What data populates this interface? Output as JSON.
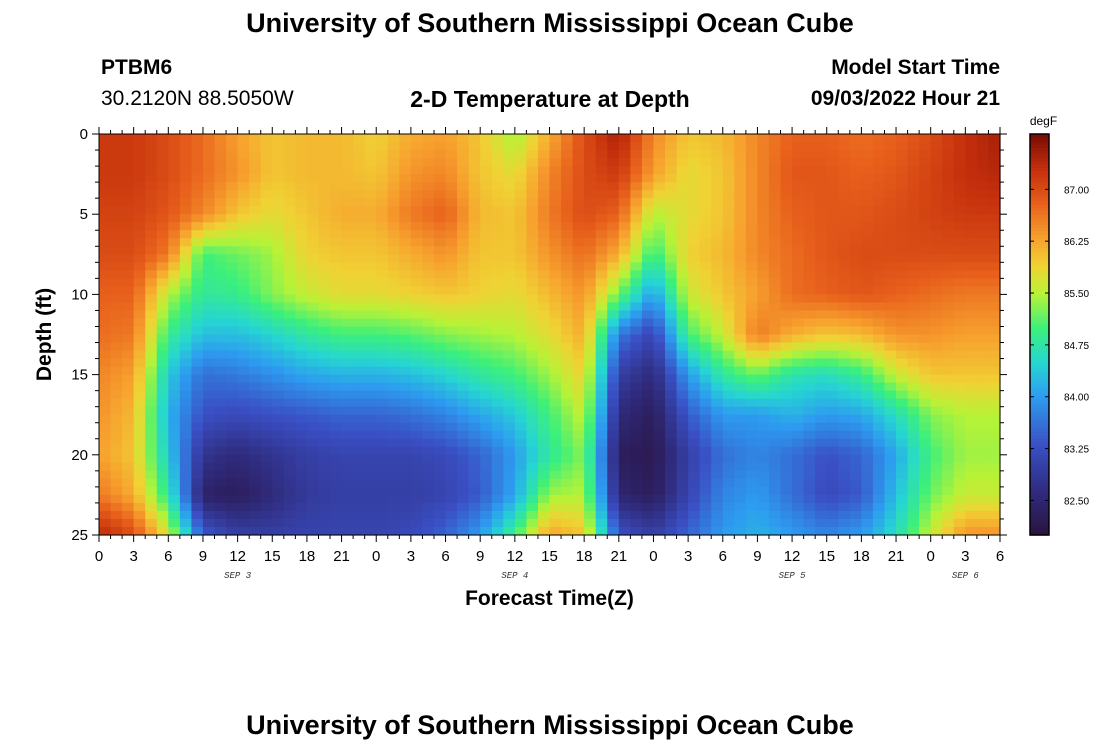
{
  "page": {
    "title": "University of Southern Mississippi Ocean Cube",
    "footer_title": "University of Southern Mississippi Ocean Cube"
  },
  "station": {
    "id": "PTBM6",
    "coords": "30.2120N  88.5050W"
  },
  "model": {
    "start_label": "Model Start Time",
    "start_value": "09/03/2022 Hour 21"
  },
  "chart_data": {
    "type": "heatmap",
    "title": "2-D Temperature at Depth",
    "xlabel": "Forecast Time(Z)",
    "ylabel": "Depth (ft)",
    "x_range_hours": [
      0,
      78
    ],
    "y_range_ft": [
      0,
      25
    ],
    "x_tick_labels": [
      "0",
      "3",
      "6",
      "9",
      "12",
      "15",
      "18",
      "21",
      "0",
      "3",
      "6",
      "9",
      "12",
      "15",
      "18",
      "21",
      "0",
      "3",
      "6",
      "9",
      "12",
      "15",
      "18",
      "21",
      "0",
      "3",
      "6"
    ],
    "date_labels": [
      {
        "text": "SEP 3",
        "hour": 12
      },
      {
        "text": "SEP 4",
        "hour": 36
      },
      {
        "text": "SEP 5",
        "hour": 60
      },
      {
        "text": "SEP 6",
        "hour": 75
      }
    ],
    "y_tick_labels": [
      "0",
      "5",
      "10",
      "15",
      "20",
      "25"
    ],
    "colorbar": {
      "unit": "degF",
      "min": 82.0,
      "max": 87.8,
      "tick_labels": [
        "87.00",
        "86.25",
        "85.50",
        "84.75",
        "84.00",
        "83.25",
        "82.50"
      ],
      "stops": [
        {
          "v": 82.0,
          "c": "#2a123f"
        },
        {
          "v": 82.6,
          "c": "#2f2a7a"
        },
        {
          "v": 83.3,
          "c": "#3a4fc4"
        },
        {
          "v": 84.0,
          "c": "#2d9bf0"
        },
        {
          "v": 84.5,
          "c": "#26d6d1"
        },
        {
          "v": 85.0,
          "c": "#3cf07a"
        },
        {
          "v": 85.5,
          "c": "#b8f236"
        },
        {
          "v": 85.9,
          "c": "#f0d234"
        },
        {
          "v": 86.3,
          "c": "#f7a02e"
        },
        {
          "v": 86.8,
          "c": "#e8601c"
        },
        {
          "v": 87.3,
          "c": "#c42f0c"
        },
        {
          "v": 87.8,
          "c": "#7a0c04"
        }
      ]
    },
    "grid_hours": [
      0,
      3,
      6,
      9,
      12,
      15,
      18,
      21,
      24,
      27,
      30,
      33,
      36,
      39,
      42,
      45,
      48,
      51,
      54,
      57,
      60,
      63,
      66,
      69,
      72,
      75,
      78
    ],
    "grid_depths_ft": [
      0,
      2.5,
      5,
      7.5,
      10,
      12.5,
      15,
      17.5,
      20,
      22.5,
      25
    ],
    "temperature_degF": [
      [
        87.2,
        87.2,
        87.0,
        86.7,
        86.3,
        86.0,
        86.1,
        86.1,
        85.9,
        86.2,
        86.3,
        86.0,
        85.4,
        86.2,
        87.0,
        87.5,
        86.5,
        86.0,
        86.1,
        86.5,
        86.8,
        86.8,
        86.7,
        86.8,
        87.0,
        87.3,
        87.5
      ],
      [
        87.2,
        87.2,
        87.0,
        86.7,
        86.4,
        86.0,
        86.1,
        86.1,
        86.0,
        86.4,
        86.5,
        86.0,
        85.8,
        86.5,
        87.0,
        87.2,
        86.3,
        85.8,
        86.0,
        86.5,
        86.9,
        86.9,
        86.8,
        86.9,
        87.1,
        87.3,
        87.4
      ],
      [
        87.1,
        87.1,
        86.9,
        86.5,
        86.0,
        85.8,
        86.0,
        86.2,
        86.2,
        86.6,
        86.8,
        86.1,
        86.0,
        86.6,
        87.0,
        86.8,
        85.5,
        85.8,
        86.0,
        86.5,
        86.8,
        86.9,
        86.9,
        87.0,
        87.1,
        87.2,
        87.2
      ],
      [
        87.0,
        87.0,
        86.6,
        85.0,
        85.2,
        85.4,
        85.9,
        86.0,
        86.0,
        86.2,
        86.4,
        86.0,
        86.0,
        86.4,
        86.7,
        86.2,
        84.9,
        85.9,
        86.1,
        86.5,
        86.7,
        86.9,
        87.0,
        87.0,
        87.0,
        87.0,
        87.0
      ],
      [
        86.8,
        86.8,
        85.5,
        84.8,
        84.9,
        85.3,
        85.6,
        85.8,
        85.8,
        85.9,
        86.0,
        85.9,
        85.8,
        86.1,
        86.4,
        85.2,
        84.0,
        85.6,
        86.0,
        86.3,
        86.7,
        86.8,
        86.9,
        86.8,
        86.7,
        86.6,
        86.6
      ],
      [
        86.7,
        86.6,
        84.9,
        84.3,
        84.3,
        84.5,
        84.8,
        85.0,
        85.0,
        85.1,
        85.3,
        85.4,
        85.5,
        85.8,
        86.2,
        83.7,
        83.1,
        85.0,
        85.6,
        86.6,
        86.2,
        86.0,
        86.1,
        86.4,
        86.4,
        86.3,
        86.3
      ],
      [
        86.5,
        86.3,
        84.4,
        83.6,
        83.7,
        83.9,
        84.1,
        84.2,
        84.2,
        84.3,
        84.5,
        84.8,
        85.0,
        85.4,
        85.9,
        83.0,
        82.6,
        84.0,
        84.8,
        85.2,
        84.7,
        84.6,
        84.9,
        85.6,
        86.0,
        86.0,
        86.0
      ],
      [
        86.4,
        86.1,
        84.2,
        83.3,
        83.2,
        83.3,
        83.4,
        83.5,
        83.5,
        83.6,
        83.8,
        84.1,
        84.4,
        85.0,
        85.6,
        82.6,
        82.3,
        83.4,
        84.0,
        84.0,
        84.2,
        84.0,
        84.1,
        84.6,
        85.3,
        85.5,
        85.5
      ],
      [
        86.3,
        86.0,
        84.4,
        82.8,
        82.6,
        82.8,
        83.0,
        83.1,
        83.1,
        83.1,
        83.2,
        83.5,
        84.0,
        84.8,
        85.3,
        82.3,
        82.2,
        83.0,
        83.6,
        83.8,
        83.6,
        83.3,
        83.5,
        84.1,
        85.0,
        85.4,
        85.4
      ],
      [
        86.6,
        86.2,
        84.8,
        82.4,
        82.3,
        82.6,
        82.9,
        83.0,
        83.0,
        83.0,
        83.1,
        83.4,
        84.1,
        85.4,
        85.5,
        82.5,
        82.3,
        83.1,
        83.8,
        84.0,
        83.6,
        83.2,
        83.4,
        84.3,
        85.2,
        85.6,
        85.6
      ],
      [
        87.4,
        87.0,
        85.7,
        83.4,
        83.0,
        83.0,
        83.1,
        83.1,
        83.1,
        83.2,
        83.5,
        84.0,
        85.0,
        86.3,
        86.0,
        83.3,
        83.0,
        83.5,
        84.0,
        84.2,
        84.0,
        83.8,
        84.0,
        84.6,
        85.6,
        86.4,
        86.4
      ]
    ]
  }
}
